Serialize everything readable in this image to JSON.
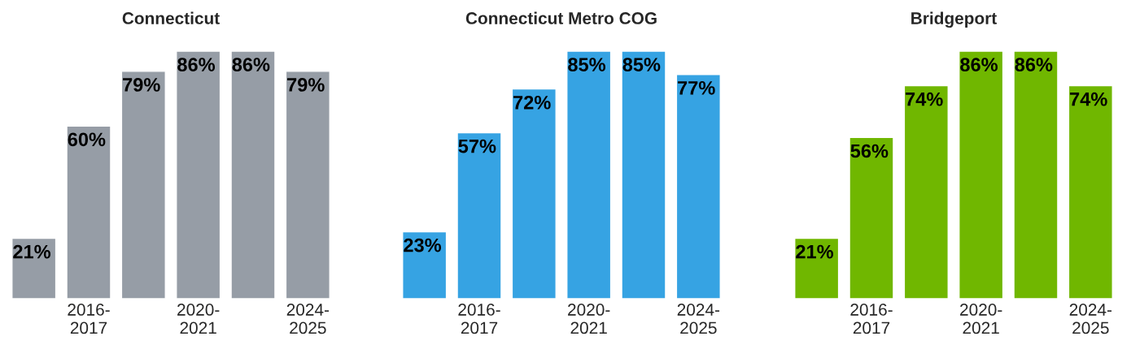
{
  "chart_data": [
    {
      "type": "bar",
      "title": "Connecticut",
      "categories": [
        null,
        "2016-\n2017",
        null,
        "2020-\n2021",
        null,
        "2024-\n2025"
      ],
      "series": [
        {
          "color": "#969da6",
          "values": [
            21,
            60,
            79,
            86,
            86,
            79
          ],
          "value_labels": [
            "21%",
            "60%",
            "79%",
            "86%",
            "86%",
            "79%"
          ]
        }
      ],
      "tick_labels": "x",
      "grid": false,
      "legend": false
    },
    {
      "type": "bar",
      "title": "Connecticut Metro COG",
      "categories": [
        null,
        "2016-\n2017",
        null,
        "2020-\n2021",
        null,
        "2024-\n2025"
      ],
      "series": [
        {
          "color": "#36a3e3",
          "values": [
            23,
            57,
            72,
            85,
            85,
            77
          ],
          "value_labels": [
            "23%",
            "57%",
            "72%",
            "85%",
            "85%",
            "77%"
          ]
        }
      ],
      "tick_labels": "x",
      "grid": false,
      "legend": false
    },
    {
      "type": "bar",
      "title": "Bridgeport",
      "categories": [
        null,
        "2016-\n2017",
        null,
        "2020-\n2021",
        null,
        "2024-\n2025"
      ],
      "series": [
        {
          "color": "#70b700",
          "values": [
            21,
            56,
            74,
            86,
            86,
            74
          ],
          "value_labels": [
            "21%",
            "56%",
            "74%",
            "86%",
            "86%",
            "74%"
          ]
        }
      ],
      "tick_labels": "x",
      "grid": false,
      "legend": false
    }
  ]
}
